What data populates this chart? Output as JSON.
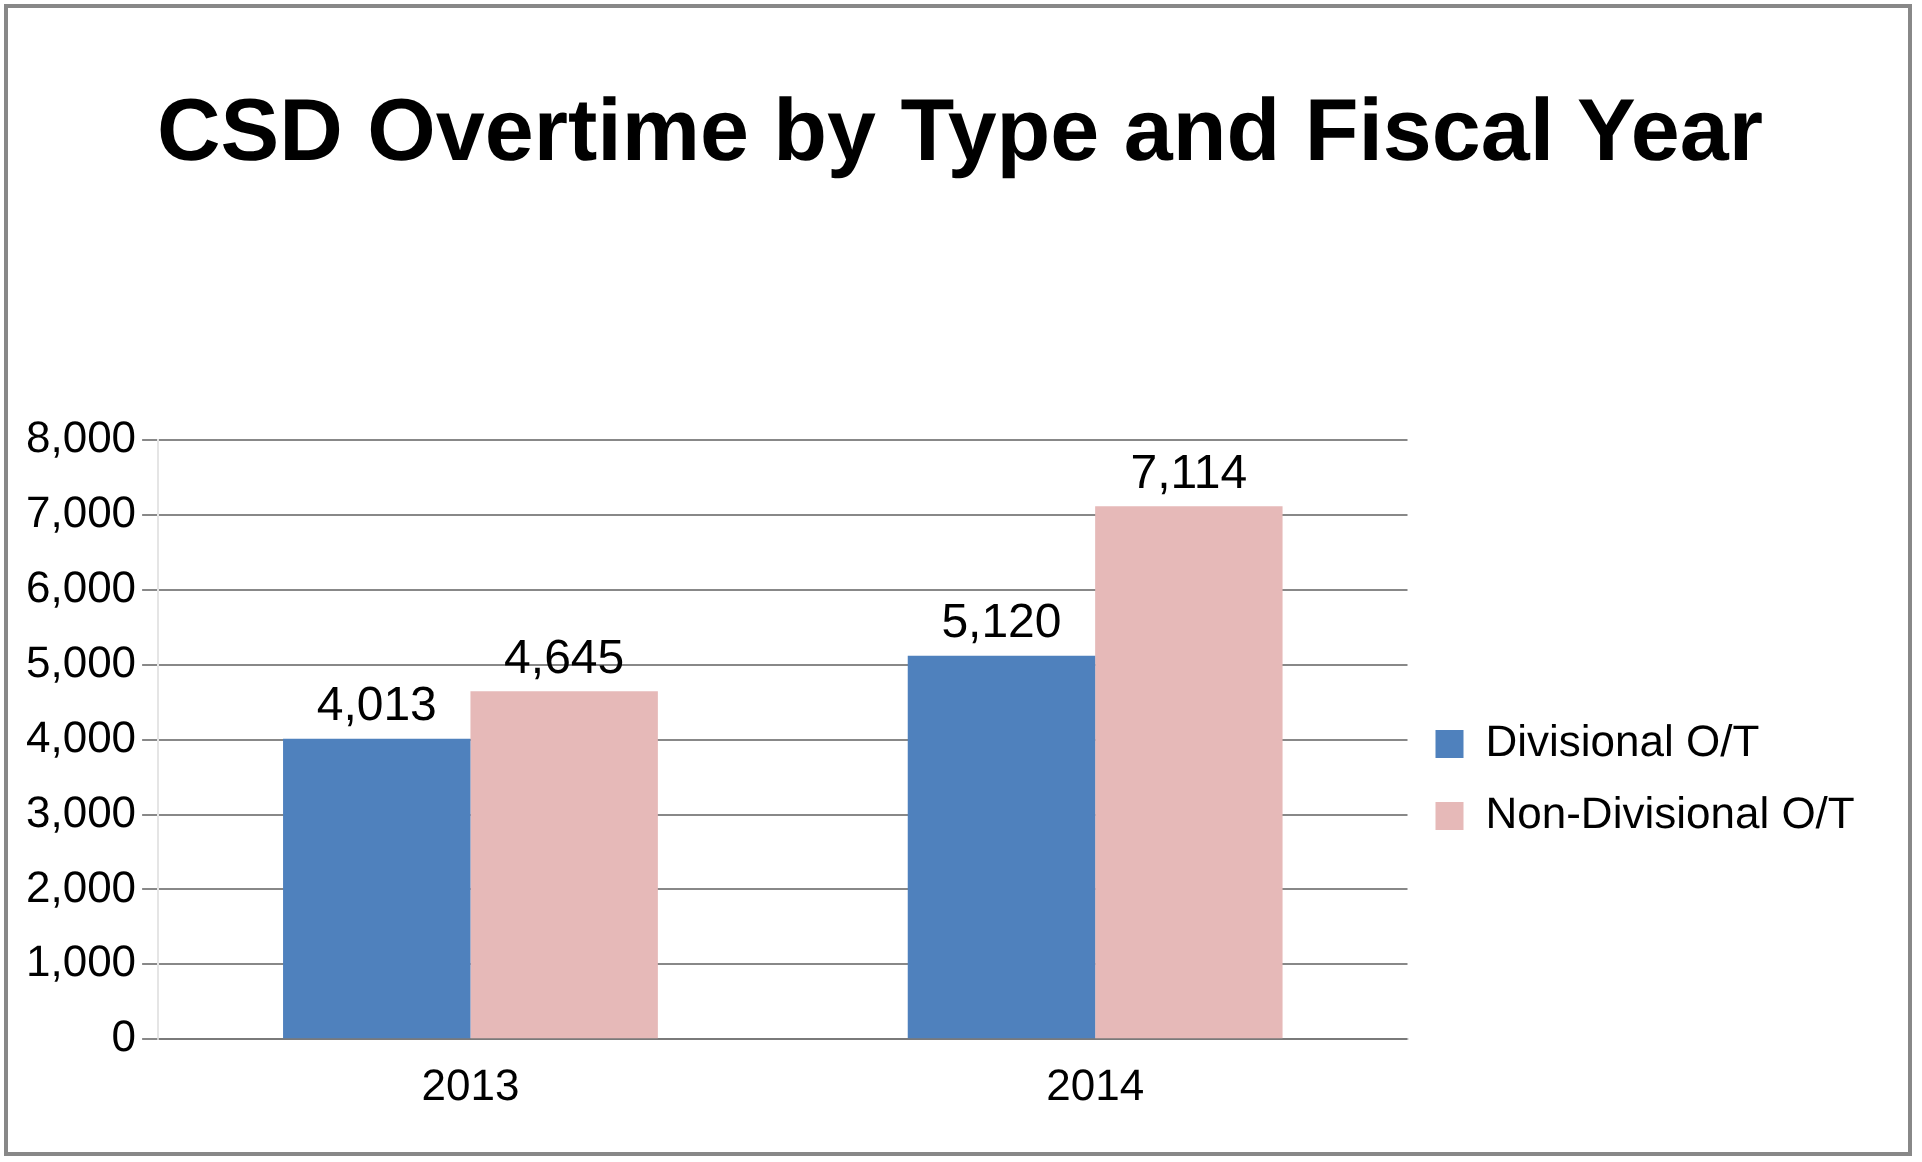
{
  "chart_data": {
    "type": "bar",
    "title": "CSD Overtime by Type and Fiscal Year",
    "categories": [
      "2013",
      "2014"
    ],
    "series": [
      {
        "name": "Divisional O/T",
        "color": "#4f81bd",
        "values": [
          4013,
          5120
        ],
        "value_labels": [
          "4,013",
          "5,120"
        ]
      },
      {
        "name": "Non-Divisional O/T",
        "color": "#e6b9b8",
        "values": [
          4645,
          7114
        ],
        "value_labels": [
          "4,645",
          "7,114"
        ]
      }
    ],
    "ylim": [
      0,
      8000
    ],
    "yticks": [
      {
        "value": 0,
        "label": "0"
      },
      {
        "value": 1000,
        "label": "1,000"
      },
      {
        "value": 2000,
        "label": "2,000"
      },
      {
        "value": 3000,
        "label": "3,000"
      },
      {
        "value": 4000,
        "label": "4,000"
      },
      {
        "value": 5000,
        "label": "5,000"
      },
      {
        "value": 6000,
        "label": "6,000"
      },
      {
        "value": 7000,
        "label": "7,000"
      },
      {
        "value": 8000,
        "label": "8,000"
      }
    ],
    "grid": "y",
    "legend": "right"
  }
}
